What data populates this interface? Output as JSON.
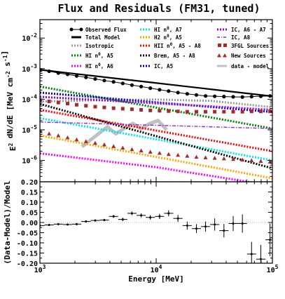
{
  "chart_data": {
    "type": "line",
    "title": "Flux and Residuals (FM31, tuned)",
    "xlabel": "Energy [MeV]",
    "x_scale": "log",
    "xlim": [
      1000,
      100000
    ],
    "x_ticks": [
      {
        "value": 1000,
        "label": "10^3"
      },
      {
        "value": 10000,
        "label": "10^4"
      },
      {
        "value": 100000,
        "label": "10^5"
      }
    ],
    "top_panel": {
      "ylabel": "E^2 dN/dE [MeV cm^-2 s^-1]",
      "y_scale": "log",
      "ylim": [
        2e-07,
        0.04
      ],
      "y_ticks": [
        {
          "value": 1e-06,
          "label": "10^-6"
        },
        {
          "value": 1e-05,
          "label": "10^-5"
        },
        {
          "value": 0.0001,
          "label": "10^-4"
        },
        {
          "value": 0.001,
          "label": "10^-3"
        },
        {
          "value": 0.01,
          "label": "10^-2"
        }
      ],
      "legend": {
        "placement": "top",
        "entries": [
          {
            "label": "Observed Flux",
            "color": "#000000",
            "style": "dots-line"
          },
          {
            "label": "Total Model",
            "color": "#000000",
            "style": "thick-line"
          },
          {
            "label": "Isotropic",
            "color": "#999999",
            "style": "dotted"
          },
          {
            "label": "HI n^0, A5",
            "color": "#008000",
            "style": "dotted"
          },
          {
            "label": "HI n^0, A6",
            "color": "#ff00ff",
            "style": "dotted"
          },
          {
            "label": "HI n^0, A7",
            "color": "#00e5ee",
            "style": "dotted"
          },
          {
            "label": "H2 n^0, A5",
            "color": "#ffa500",
            "style": "dotted"
          },
          {
            "label": "HII n^0, A5 - A8",
            "color": "#ff0000",
            "style": "dotted"
          },
          {
            "label": "Brem, A5 - A8",
            "color": "#000000",
            "style": "dotted"
          },
          {
            "label": "IC, A5",
            "color": "#0000cd",
            "style": "dotted"
          },
          {
            "label": "IC, A6 - A7",
            "color": "#9400d3",
            "style": "dotted"
          },
          {
            "label": "IC, A8",
            "color": "#8a2be2",
            "style": "dashdot"
          },
          {
            "label": "3FGL Sources",
            "color": "#a52a2a",
            "style": "square"
          },
          {
            "label": "New Sources",
            "color": "#a52a2a",
            "style": "triangle"
          },
          {
            "label": "data - model",
            "color": "#c0c0c0",
            "style": "thick-line"
          }
        ]
      },
      "observed_flux": {
        "x": [
          1000,
          1200,
          1440,
          1730,
          2070,
          2490,
          2990,
          3580,
          4300,
          5160,
          6190,
          7430,
          8910,
          10700,
          12800,
          15400,
          18500,
          22200,
          26600,
          31900,
          38300,
          46000,
          55200,
          66200,
          79500,
          95400
        ],
        "y": [
          0.00092,
          0.00082,
          0.00072,
          0.00065,
          0.00058,
          0.00052,
          0.00046,
          0.00041,
          0.00037,
          0.00033,
          0.00029,
          0.00026,
          0.00023,
          0.000205,
          0.000185,
          0.000165,
          0.00015,
          0.000138,
          0.000128,
          0.000125,
          0.000122,
          0.00012,
          0.000118,
          0.000122,
          0.000125,
          0.000128
        ]
      },
      "series": [
        {
          "name": "Total Model",
          "color": "#000000",
          "style": "solid",
          "x": [
            1000,
            100000
          ],
          "y": [
            0.00092,
            0.000125
          ]
        },
        {
          "name": "Isotropic",
          "color": "#999999",
          "style": "dotted",
          "x": [
            1000,
            3000,
            10000,
            30000,
            100000
          ],
          "y": [
            8.5e-05,
            9.2e-05,
            9.8e-05,
            8.8e-05,
            5.5e-05
          ]
        },
        {
          "name": "HI n^0, A5",
          "color": "#008000",
          "style": "dotted",
          "x": [
            1000,
            100000
          ],
          "y": [
            0.00026,
            1.1e-05
          ]
        },
        {
          "name": "HI n^0, A6",
          "color": "#ff00ff",
          "style": "dotted",
          "x": [
            1000,
            10000,
            100000
          ],
          "y": [
            1.7e-06,
            6e-07,
            1.5e-07
          ]
        },
        {
          "name": "HI n^0, A7",
          "color": "#00e5ee",
          "style": "dotted",
          "x": [
            1000,
            100000
          ],
          "y": [
            2.4e-05,
            1e-06
          ]
        },
        {
          "name": "H2 n^0, A5",
          "color": "#ffa500",
          "style": "dotted",
          "x": [
            1000,
            100000
          ],
          "y": [
            6.5e-06,
            2.6e-07
          ]
        },
        {
          "name": "HII n^0, A5 - A8",
          "color": "#ff0000",
          "style": "dotted",
          "x": [
            1000,
            100000
          ],
          "y": [
            4.5e-05,
            2e-06
          ]
        },
        {
          "name": "Brem, A5 - A8",
          "color": "#000000",
          "style": "dotted",
          "x": [
            1000,
            100000
          ],
          "y": [
            7e-05,
            5.5e-07
          ]
        },
        {
          "name": "IC, A5",
          "color": "#0000cd",
          "style": "dotted",
          "x": [
            1000,
            100000
          ],
          "y": [
            0.000165,
            3.8e-05
          ]
        },
        {
          "name": "IC, A6 - A7",
          "color": "#9400d3",
          "style": "dotted",
          "x": [
            1000,
            100000
          ],
          "y": [
            0.00012,
            4.5e-05
          ]
        },
        {
          "name": "IC, A8",
          "color": "#8a2be2",
          "style": "dashdot",
          "x": [
            1000,
            100000
          ],
          "y": [
            1.8e-05,
            1.1e-05
          ]
        }
      ],
      "sources_3fgl": {
        "color": "#a52a2a",
        "x": [
          1000,
          1200,
          1440,
          1730,
          2070,
          2490,
          2990,
          3580,
          4300,
          5160,
          6190,
          7430,
          8910,
          10700,
          12800,
          15400,
          18500,
          22200,
          26600,
          31900,
          38300,
          46000,
          55200,
          66200,
          79500,
          95400
        ],
        "y": [
          9.5e-05,
          8.5e-05,
          7.8e-05,
          7.2e-05,
          6.6e-05,
          6.1e-05,
          5.7e-05,
          5.4e-05,
          5.1e-05,
          4.9e-05,
          4.7e-05,
          4.5e-05,
          4.3e-05,
          4.2e-05,
          4.1e-05,
          4e-05,
          3.9e-05,
          3.9e-05,
          3.9e-05,
          3.9e-05,
          3.9e-05,
          3.9e-05,
          3.9e-05,
          4e-05,
          4e-05,
          4e-05
        ]
      },
      "new_sources": {
        "color": "#a52a2a",
        "x": [
          1000,
          1200,
          1440,
          1730,
          2070,
          2490,
          2990,
          3580,
          4300,
          5160,
          6190,
          7430,
          8910,
          10700,
          12800,
          15400,
          18500,
          22200,
          26600,
          31900,
          38300,
          46000,
          55200,
          66200,
          79500,
          95400
        ],
        "y": [
          9.5e-06,
          7.5e-06,
          6.5e-06,
          5.6e-06,
          4.8e-06,
          4.2e-06,
          3.7e-06,
          3.3e-06,
          2.9e-06,
          2.6e-06,
          2.3e-06,
          2.1e-06,
          1.9e-06,
          1.75e-06,
          1.6e-06,
          1.5e-06,
          1.4e-06,
          1.3e-06,
          1.25e-06,
          1.2e-06,
          1.15e-06,
          1.1e-06,
          1.05e-06,
          1e-06,
          9.5e-07,
          9e-07
        ]
      },
      "data_minus_model": {
        "color": "#c0c0c0",
        "x": [
          2300,
          2700,
          3200,
          3800,
          4500,
          5300,
          6300,
          7400,
          8800,
          10400,
          12300
        ],
        "y": [
          2.8e-06,
          4.5e-06,
          7.5e-06,
          1.25e-05,
          7.5e-06,
          1.1e-05,
          1.6e-05,
          1.1e-05,
          1.6e-05,
          2e-05,
          1e-05
        ]
      }
    },
    "bottom_panel": {
      "ylabel": "(Data-Model)/Model",
      "y_scale": "linear",
      "ylim": [
        -0.2,
        0.2
      ],
      "y_ticks": [
        {
          "value": 0.2,
          "label": "0.20"
        },
        {
          "value": 0.15,
          "label": "0.15"
        },
        {
          "value": 0.1,
          "label": "0.10"
        },
        {
          "value": 0.05,
          "label": "0.05"
        },
        {
          "value": 0.0,
          "label": "0.00"
        },
        {
          "value": -0.05,
          "label": "-0.05"
        },
        {
          "value": -0.1,
          "label": "-0.10"
        },
        {
          "value": -0.15,
          "label": "-0.15"
        },
        {
          "value": -0.2,
          "label": "-0.20"
        }
      ],
      "residuals": {
        "x": [
          1000,
          1200,
          1440,
          1730,
          2070,
          2490,
          2990,
          3580,
          4300,
          5160,
          6190,
          7430,
          8910,
          10700,
          12800,
          15400,
          18500,
          22200,
          26600,
          31900,
          38300,
          46000,
          55200,
          66200,
          79500,
          95400
        ],
        "y": [
          -0.015,
          -0.012,
          -0.008,
          -0.01,
          -0.008,
          0.005,
          0.01,
          0.012,
          0.03,
          0.015,
          0.045,
          0.035,
          0.025,
          0.03,
          0.045,
          0.02,
          -0.015,
          -0.03,
          -0.02,
          -0.01,
          -0.04,
          -0.005,
          -0.005,
          -0.155,
          -0.18,
          -0.085
        ],
        "yerr": [
          0.004,
          0.004,
          0.004,
          0.004,
          0.005,
          0.005,
          0.005,
          0.006,
          0.007,
          0.008,
          0.009,
          0.01,
          0.011,
          0.013,
          0.015,
          0.017,
          0.02,
          0.022,
          0.025,
          0.03,
          0.033,
          0.037,
          0.045,
          0.06,
          0.07,
          0.08
        ]
      }
    }
  }
}
